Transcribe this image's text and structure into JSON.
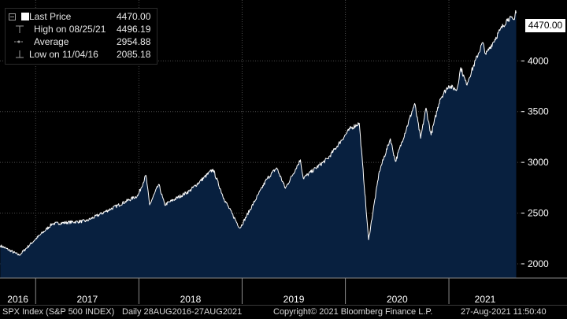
{
  "legend": {
    "rows": [
      {
        "label": "Last Price",
        "value": "4470.00"
      },
      {
        "label": "High on 08/25/21",
        "value": "4496.19"
      },
      {
        "label": "Average",
        "value": "2954.88"
      },
      {
        "label": "Low on 11/04/16",
        "value": "2085.18"
      }
    ]
  },
  "last_price_label": "4470.00",
  "footer": {
    "index_name": "SPX Index (S&P 500 INDEX)",
    "range": "Daily 28AUG2016-27AUG2021",
    "copyright": "Copyright© 2021 Bloomberg Finance L.P.",
    "timestamp": "27-Aug-2021 11:50:40"
  },
  "colors": {
    "fill": "#08203f",
    "line": "#ffffff",
    "grid": "#4a4a4a",
    "background": "#000000"
  },
  "chart_data": {
    "type": "area",
    "series": [
      {
        "name": "Last Price"
      }
    ],
    "x": [
      "2016-08-29",
      "2016-11-04",
      "2016-12-30",
      "2017-03-01",
      "2017-06-30",
      "2017-12-29",
      "2018-01-26",
      "2018-02-08",
      "2018-03-12",
      "2018-04-02",
      "2018-06-29",
      "2018-09-20",
      "2018-10-29",
      "2018-12-24",
      "2019-03-29",
      "2019-05-03",
      "2019-06-03",
      "2019-07-26",
      "2019-08-05",
      "2019-10-31",
      "2020-01-17",
      "2020-02-19",
      "2020-03-23",
      "2020-04-30",
      "2020-06-08",
      "2020-06-26",
      "2020-09-02",
      "2020-09-23",
      "2020-10-12",
      "2020-10-30",
      "2020-11-30",
      "2020-12-31",
      "2021-01-29",
      "2021-02-12",
      "2021-03-04",
      "2021-04-30",
      "2021-05-12",
      "2021-06-30",
      "2021-07-29",
      "2021-08-19",
      "2021-08-25",
      "2021-08-27"
    ],
    "values": [
      2180,
      2085,
      2239,
      2395,
      2423,
      2674,
      2873,
      2581,
      2783,
      2582,
      2718,
      2931,
      2641,
      2351,
      2834,
      2946,
      2744,
      3025,
      2844,
      3038,
      3330,
      3386,
      2237,
      2912,
      3232,
      3009,
      3580,
      3237,
      3535,
      3270,
      3622,
      3756,
      3714,
      3934,
      3768,
      4181,
      4063,
      4298,
      4419,
      4405,
      4496,
      4470
    ],
    "categories": [
      "2016",
      "2017",
      "2018",
      "2019",
      "2020",
      "2021"
    ],
    "year_starts": [
      "2017-01-01",
      "2018-01-01",
      "2019-01-01",
      "2020-01-01",
      "2021-01-01"
    ],
    "x_range": [
      "2016-08-28",
      "2021-09-14"
    ],
    "y_ticks": [
      2000,
      2500,
      3000,
      3500,
      4000
    ],
    "ylim": [
      1860,
      4600
    ],
    "grid": true,
    "legend_position": "top-left"
  }
}
